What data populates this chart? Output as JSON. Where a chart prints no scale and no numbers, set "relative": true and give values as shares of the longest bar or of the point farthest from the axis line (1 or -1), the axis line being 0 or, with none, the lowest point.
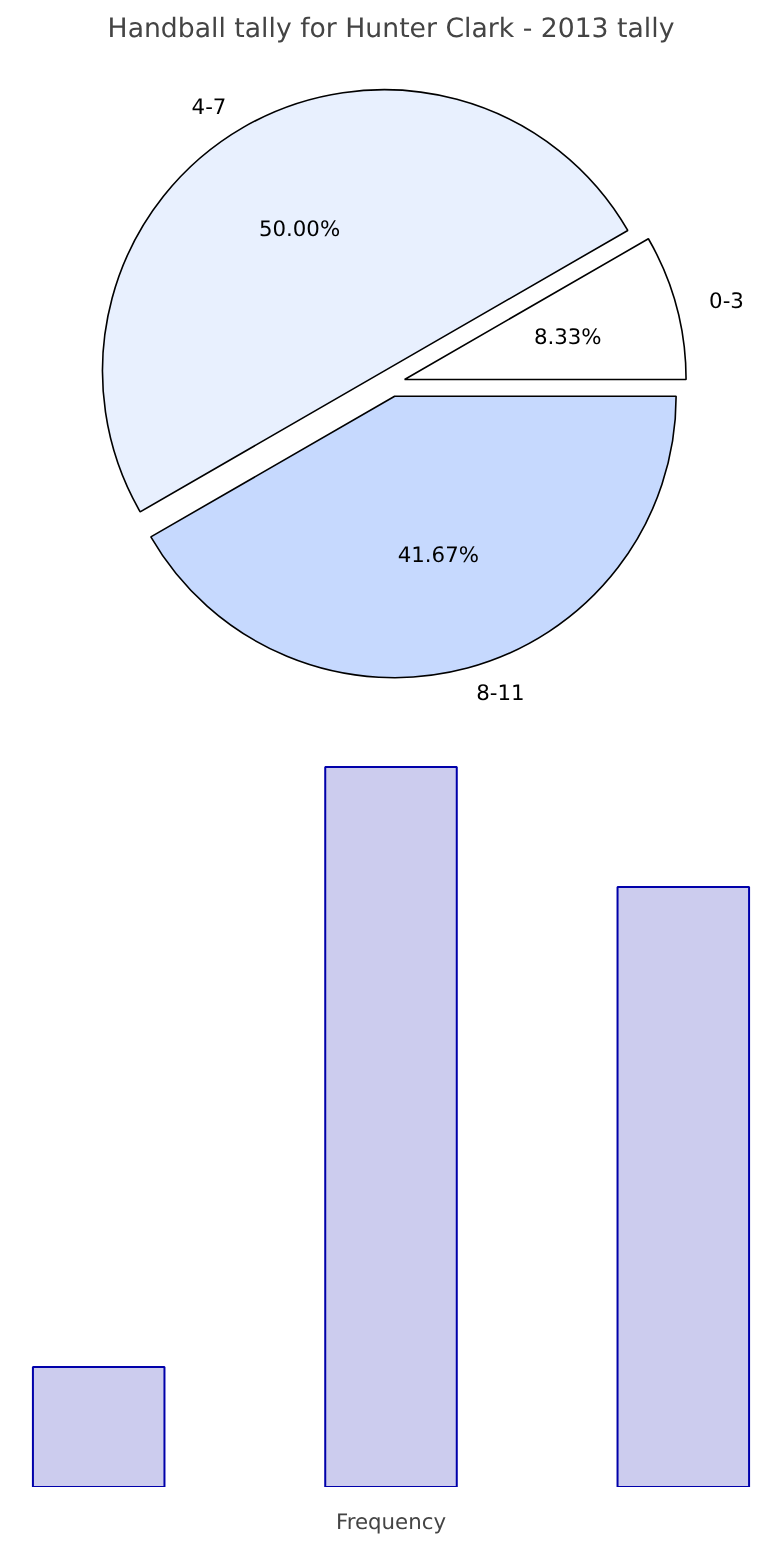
{
  "chart_data": [
    {
      "type": "pie",
      "title": "Handball tally for Hunter Clark - 2013 tally",
      "categories": [
        "0-3",
        "4-7",
        "8-11"
      ],
      "values": [
        8.33,
        50.0,
        41.67
      ],
      "value_labels": [
        "8.33%",
        "50.00%",
        "41.67%"
      ],
      "colors": [
        "#ffffff",
        "#e8f0fe",
        "#c6d9fe"
      ]
    },
    {
      "type": "bar",
      "categories": [
        null,
        null,
        null
      ],
      "values": [
        0.1667,
        1.0,
        0.8333
      ],
      "relative": true,
      "color": "#ccccee",
      "xlabel": "Frequency"
    }
  ]
}
